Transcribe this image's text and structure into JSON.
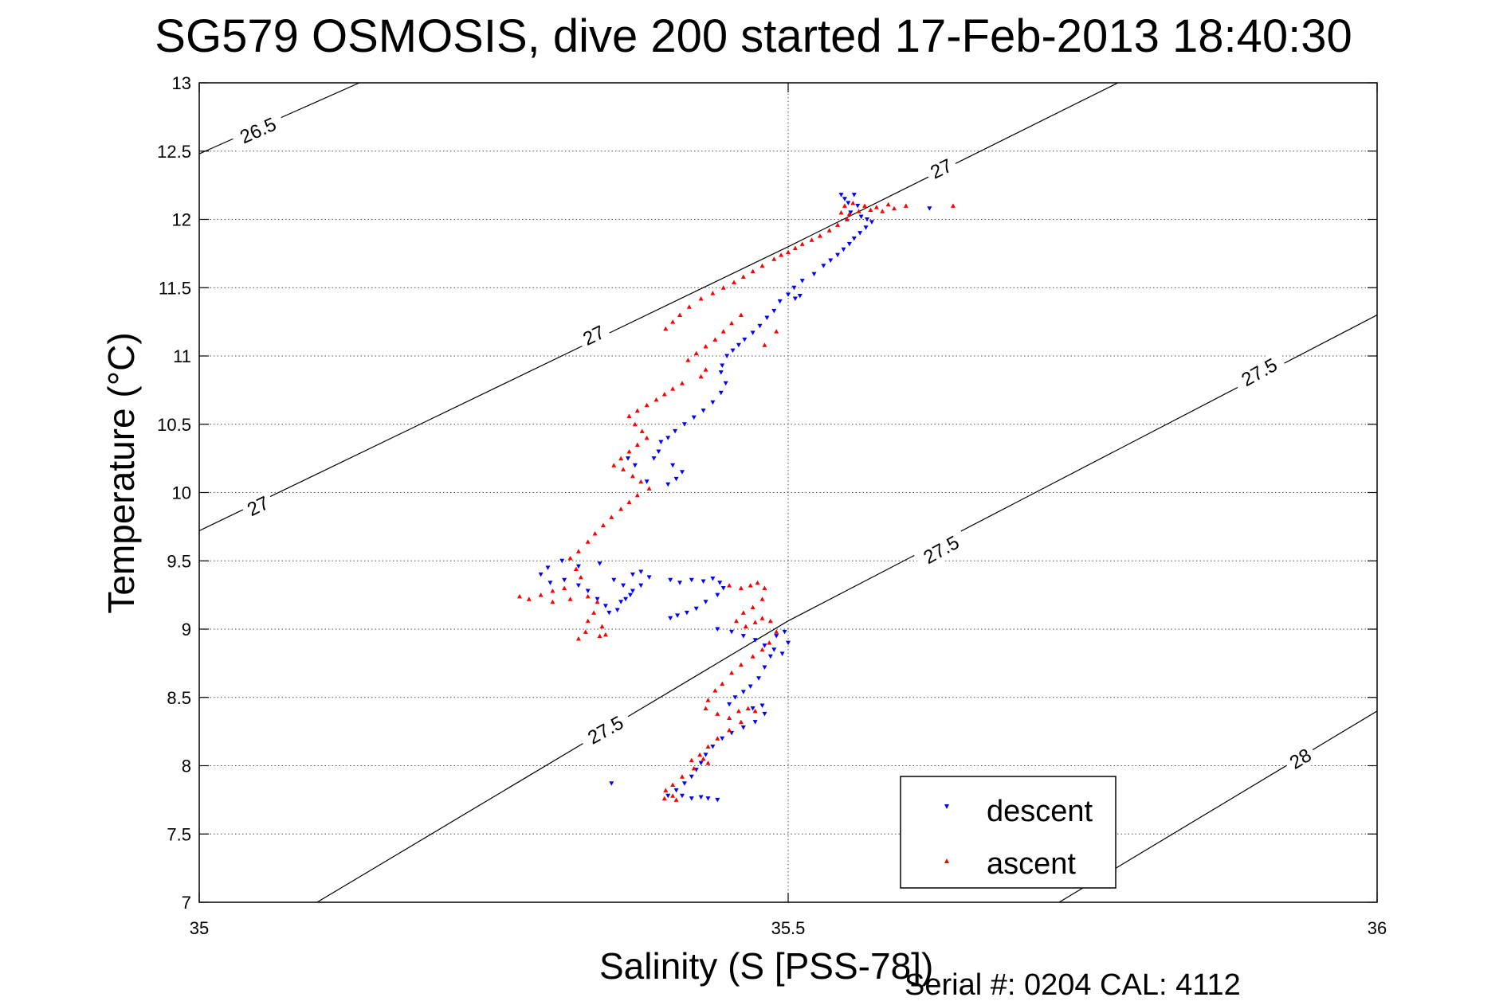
{
  "chart_data": {
    "type": "scatter",
    "title": "SG579 OSMOSIS, dive 200 started 17-Feb-2013 18:40:30",
    "xlabel": "Salinity (S [PSS-78])",
    "ylabel": "Temperature (°C)",
    "footnote": "Serial #: 0204  CAL: 4112",
    "xlim": [
      35,
      36
    ],
    "ylim": [
      7,
      13
    ],
    "xticks": [
      35,
      35.5,
      36
    ],
    "xtick_labels": [
      "35",
      "35.5",
      "36"
    ],
    "yticks": [
      7,
      7.5,
      8,
      8.5,
      9,
      9.5,
      10,
      10.5,
      11,
      11.5,
      12,
      12.5,
      13
    ],
    "ytick_labels": [
      "7",
      "7.5",
      "8",
      "8.5",
      "9",
      "9.5",
      "10",
      "10.5",
      "11",
      "11.5",
      "12",
      "12.5",
      "13"
    ],
    "grid": true,
    "legend_position": "bottom-right",
    "colors": {
      "descent": "#0000ff",
      "ascent": "#ff0000",
      "contour": "#000000"
    },
    "contours": [
      {
        "label": "26.5",
        "points": [
          [
            35,
            12.48
          ],
          [
            35.136,
            13.0
          ]
        ],
        "label_at": [
          [
            35.05,
            12.65
          ]
        ]
      },
      {
        "label": "27",
        "points": [
          [
            35,
            9.72
          ],
          [
            35.5,
            11.8
          ],
          [
            35.78,
            13.0
          ]
        ],
        "label_at": [
          [
            35.05,
            9.9
          ],
          [
            35.335,
            11.15
          ],
          [
            35.63,
            12.37
          ]
        ]
      },
      {
        "label": "27.5",
        "points": [
          [
            35.1,
            7.0
          ],
          [
            35.5,
            9.06
          ],
          [
            36,
            11.3
          ]
        ],
        "label_at": [
          [
            35.345,
            8.26
          ],
          [
            35.63,
            9.58
          ],
          [
            35.9,
            10.88
          ]
        ]
      },
      {
        "label": "28",
        "points": [
          [
            35.73,
            7.0
          ],
          [
            36,
            8.4
          ]
        ],
        "label_at": [
          [
            35.935,
            8.05
          ]
        ]
      }
    ],
    "series": [
      {
        "name": "descent",
        "marker": "triangle-down",
        "points": [
          [
            35.545,
            12.18
          ],
          [
            35.548,
            12.15
          ],
          [
            35.551,
            12.12
          ],
          [
            35.556,
            12.18
          ],
          [
            35.559,
            12.1
          ],
          [
            35.553,
            12.05
          ],
          [
            35.562,
            12.02
          ],
          [
            35.567,
            12.0
          ],
          [
            35.571,
            11.98
          ],
          [
            35.566,
            11.94
          ],
          [
            35.561,
            11.9
          ],
          [
            35.556,
            11.86
          ],
          [
            35.552,
            11.82
          ],
          [
            35.547,
            11.78
          ],
          [
            35.542,
            11.74
          ],
          [
            35.536,
            11.7
          ],
          [
            35.53,
            11.66
          ],
          [
            35.522,
            11.6
          ],
          [
            35.512,
            11.55
          ],
          [
            35.505,
            11.5
          ],
          [
            35.5,
            11.45
          ],
          [
            35.493,
            11.4
          ],
          [
            35.488,
            11.33
          ],
          [
            35.482,
            11.28
          ],
          [
            35.476,
            11.22
          ],
          [
            35.47,
            11.17
          ],
          [
            35.463,
            11.12
          ],
          [
            35.458,
            11.08
          ],
          [
            35.453,
            11.04
          ],
          [
            35.448,
            11.0
          ],
          [
            35.444,
            10.93
          ],
          [
            35.443,
            10.88
          ],
          [
            35.447,
            10.8
          ],
          [
            35.443,
            10.73
          ],
          [
            35.436,
            10.66
          ],
          [
            35.428,
            10.6
          ],
          [
            35.42,
            10.55
          ],
          [
            35.412,
            10.5
          ],
          [
            35.404,
            10.45
          ],
          [
            35.398,
            10.4
          ],
          [
            35.392,
            10.37
          ],
          [
            35.39,
            10.3
          ],
          [
            35.386,
            10.25
          ],
          [
            35.402,
            10.2
          ],
          [
            35.41,
            10.15
          ],
          [
            35.405,
            10.1
          ],
          [
            35.398,
            10.06
          ],
          [
            35.38,
            10.08
          ],
          [
            35.37,
            10.2
          ],
          [
            35.364,
            10.25
          ],
          [
            35.34,
            9.48
          ],
          [
            35.322,
            9.46
          ],
          [
            35.308,
            9.5
          ],
          [
            35.296,
            9.45
          ],
          [
            35.29,
            9.4
          ],
          [
            35.298,
            9.34
          ],
          [
            35.31,
            9.36
          ],
          [
            35.322,
            9.32
          ],
          [
            35.33,
            9.28
          ],
          [
            35.338,
            9.22
          ],
          [
            35.345,
            9.17
          ],
          [
            35.358,
            9.2
          ],
          [
            35.366,
            9.25
          ],
          [
            35.36,
            9.32
          ],
          [
            35.352,
            9.36
          ],
          [
            35.368,
            9.4
          ],
          [
            35.375,
            9.42
          ],
          [
            35.382,
            9.38
          ],
          [
            35.375,
            9.32
          ],
          [
            35.368,
            9.28
          ],
          [
            35.362,
            9.22
          ],
          [
            35.355,
            9.14
          ],
          [
            35.348,
            9.12
          ],
          [
            35.4,
            9.36
          ],
          [
            35.408,
            9.34
          ],
          [
            35.418,
            9.36
          ],
          [
            35.428,
            9.35
          ],
          [
            35.436,
            9.37
          ],
          [
            35.442,
            9.34
          ],
          [
            35.445,
            9.3
          ],
          [
            35.44,
            9.25
          ],
          [
            35.43,
            9.2
          ],
          [
            35.422,
            9.15
          ],
          [
            35.414,
            9.12
          ],
          [
            35.406,
            9.1
          ],
          [
            35.4,
            9.08
          ],
          [
            35.44,
            9.0
          ],
          [
            35.452,
            8.98
          ],
          [
            35.462,
            8.95
          ],
          [
            35.472,
            8.92
          ],
          [
            35.48,
            8.88
          ],
          [
            35.488,
            8.85
          ],
          [
            35.495,
            8.82
          ],
          [
            35.5,
            8.9
          ],
          [
            35.497,
            8.98
          ],
          [
            35.49,
            8.95
          ],
          [
            35.485,
            8.8
          ],
          [
            35.48,
            8.72
          ],
          [
            35.475,
            8.64
          ],
          [
            35.468,
            8.58
          ],
          [
            35.462,
            8.54
          ],
          [
            35.455,
            8.5
          ],
          [
            35.45,
            8.45
          ],
          [
            35.47,
            8.42
          ],
          [
            35.478,
            8.44
          ],
          [
            35.48,
            8.38
          ],
          [
            35.472,
            8.32
          ],
          [
            35.462,
            8.28
          ],
          [
            35.452,
            8.24
          ],
          [
            35.444,
            8.2
          ],
          [
            35.436,
            8.14
          ],
          [
            35.43,
            8.08
          ],
          [
            35.426,
            8.02
          ],
          [
            35.422,
            7.97
          ],
          [
            35.418,
            7.92
          ],
          [
            35.412,
            7.87
          ],
          [
            35.405,
            7.82
          ],
          [
            35.398,
            7.78
          ],
          [
            35.41,
            7.78
          ],
          [
            35.418,
            7.76
          ],
          [
            35.426,
            7.77
          ],
          [
            35.432,
            7.76
          ],
          [
            35.44,
            7.75
          ],
          [
            35.35,
            7.87
          ],
          [
            35.62,
            12.08
          ],
          [
            35.51,
            11.44
          ],
          [
            35.506,
            11.42
          ]
        ]
      },
      {
        "name": "ascent",
        "marker": "triangle-up",
        "points": [
          [
            35.6,
            12.1
          ],
          [
            35.59,
            12.08
          ],
          [
            35.58,
            12.06
          ],
          [
            35.57,
            12.07
          ],
          [
            35.56,
            12.06
          ],
          [
            35.552,
            12.04
          ],
          [
            35.545,
            12.05
          ],
          [
            35.548,
            12.1
          ],
          [
            35.555,
            12.12
          ],
          [
            35.565,
            12.1
          ],
          [
            35.575,
            12.09
          ],
          [
            35.585,
            12.11
          ],
          [
            35.55,
            12.0
          ],
          [
            35.542,
            11.96
          ],
          [
            35.535,
            11.92
          ],
          [
            35.527,
            11.88
          ],
          [
            35.52,
            11.85
          ],
          [
            35.512,
            11.82
          ],
          [
            35.506,
            11.79
          ],
          [
            35.5,
            11.76
          ],
          [
            35.494,
            11.74
          ],
          [
            35.488,
            11.71
          ],
          [
            35.478,
            11.66
          ],
          [
            35.47,
            11.62
          ],
          [
            35.462,
            11.58
          ],
          [
            35.454,
            11.54
          ],
          [
            35.445,
            11.5
          ],
          [
            35.436,
            11.46
          ],
          [
            35.426,
            11.42
          ],
          [
            35.416,
            11.36
          ],
          [
            35.408,
            11.3
          ],
          [
            35.402,
            11.25
          ],
          [
            35.396,
            11.2
          ],
          [
            35.46,
            11.3
          ],
          [
            35.452,
            11.24
          ],
          [
            35.445,
            11.18
          ],
          [
            35.438,
            11.12
          ],
          [
            35.43,
            11.07
          ],
          [
            35.422,
            11.02
          ],
          [
            35.415,
            10.97
          ],
          [
            35.43,
            10.9
          ],
          [
            35.426,
            10.85
          ],
          [
            35.41,
            10.8
          ],
          [
            35.402,
            10.76
          ],
          [
            35.395,
            10.72
          ],
          [
            35.388,
            10.68
          ],
          [
            35.38,
            10.64
          ],
          [
            35.372,
            10.6
          ],
          [
            35.365,
            10.56
          ],
          [
            35.37,
            10.5
          ],
          [
            35.376,
            10.45
          ],
          [
            35.38,
            10.4
          ],
          [
            35.372,
            10.35
          ],
          [
            35.365,
            10.3
          ],
          [
            35.358,
            10.25
          ],
          [
            35.352,
            10.2
          ],
          [
            35.36,
            10.17
          ],
          [
            35.368,
            10.12
          ],
          [
            35.375,
            10.08
          ],
          [
            35.382,
            10.03
          ],
          [
            35.372,
            9.98
          ],
          [
            35.365,
            9.93
          ],
          [
            35.358,
            9.88
          ],
          [
            35.35,
            9.82
          ],
          [
            35.343,
            9.76
          ],
          [
            35.336,
            9.7
          ],
          [
            35.33,
            9.64
          ],
          [
            35.322,
            9.57
          ],
          [
            35.315,
            9.52
          ],
          [
            35.32,
            9.44
          ],
          [
            35.324,
            9.38
          ],
          [
            35.31,
            9.3
          ],
          [
            35.3,
            9.28
          ],
          [
            35.29,
            9.25
          ],
          [
            35.28,
            9.22
          ],
          [
            35.272,
            9.24
          ],
          [
            35.3,
            9.2
          ],
          [
            35.315,
            9.22
          ],
          [
            35.33,
            9.24
          ],
          [
            35.338,
            9.2
          ],
          [
            35.335,
            9.12
          ],
          [
            35.33,
            9.06
          ],
          [
            35.328,
            8.98
          ],
          [
            35.322,
            8.93
          ],
          [
            35.34,
            8.95
          ],
          [
            35.342,
            9.02
          ],
          [
            35.345,
            8.96
          ],
          [
            35.45,
            9.32
          ],
          [
            35.46,
            9.3
          ],
          [
            35.468,
            9.32
          ],
          [
            35.474,
            9.34
          ],
          [
            35.48,
            9.3
          ],
          [
            35.478,
            9.22
          ],
          [
            35.47,
            9.16
          ],
          [
            35.462,
            9.12
          ],
          [
            35.456,
            9.06
          ],
          [
            35.464,
            9.02
          ],
          [
            35.472,
            9.05
          ],
          [
            35.478,
            9.08
          ],
          [
            35.485,
            9.06
          ],
          [
            35.49,
            8.98
          ],
          [
            35.484,
            8.9
          ],
          [
            35.478,
            8.85
          ],
          [
            35.47,
            8.8
          ],
          [
            35.46,
            8.74
          ],
          [
            35.452,
            8.68
          ],
          [
            35.444,
            8.6
          ],
          [
            35.438,
            8.55
          ],
          [
            35.432,
            8.48
          ],
          [
            35.43,
            8.42
          ],
          [
            35.44,
            8.38
          ],
          [
            35.45,
            8.35
          ],
          [
            35.458,
            8.4
          ],
          [
            35.466,
            8.42
          ],
          [
            35.472,
            8.4
          ],
          [
            35.46,
            8.32
          ],
          [
            35.45,
            8.26
          ],
          [
            35.44,
            8.2
          ],
          [
            35.432,
            8.14
          ],
          [
            35.425,
            8.08
          ],
          [
            35.418,
            8.04
          ],
          [
            35.428,
            8.05
          ],
          [
            35.432,
            8.02
          ],
          [
            35.42,
            7.98
          ],
          [
            35.41,
            7.92
          ],
          [
            35.402,
            7.86
          ],
          [
            35.396,
            7.82
          ],
          [
            35.402,
            7.78
          ],
          [
            35.405,
            7.75
          ],
          [
            35.395,
            7.76
          ],
          [
            35.64,
            12.1
          ],
          [
            35.48,
            11.08
          ],
          [
            35.49,
            11.18
          ]
        ]
      }
    ]
  }
}
